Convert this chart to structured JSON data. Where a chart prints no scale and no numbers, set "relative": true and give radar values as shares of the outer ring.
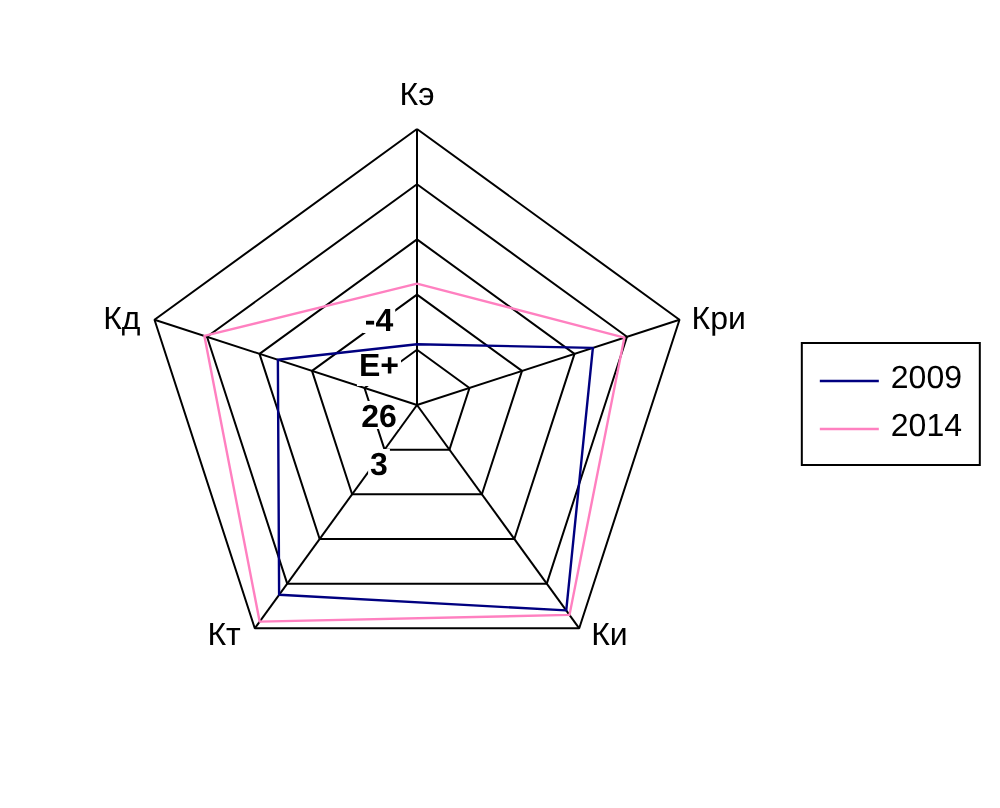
{
  "chart_data": {
    "type": "radar",
    "categories": [
      "Кэ",
      "Кри",
      "Ки",
      "Кт",
      "Кд"
    ],
    "relative": true,
    "grid": true,
    "legend": "right",
    "series": [
      {
        "name": "2009",
        "color": "#000080",
        "values": [
          0.22,
          0.67,
          0.92,
          0.85,
          0.53
        ]
      },
      {
        "name": "2014",
        "color": "#ff80c0",
        "values": [
          0.44,
          0.79,
          0.94,
          0.97,
          0.81
        ]
      }
    ],
    "annotations": [
      "-4",
      "E+",
      "26",
      "3"
    ]
  }
}
